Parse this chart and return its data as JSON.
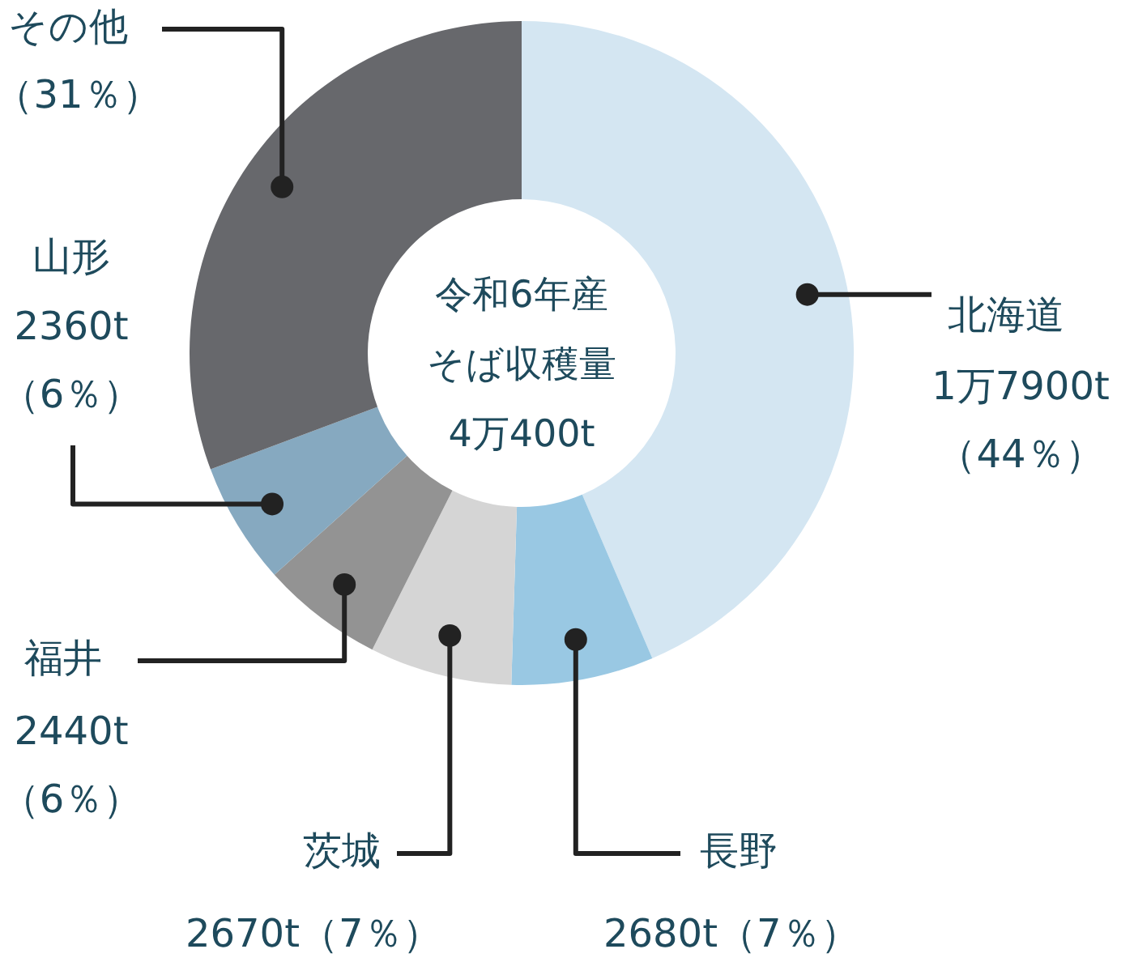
{
  "chart_data": {
    "type": "donut",
    "title": "令和6年産そば収穫量",
    "subtitle": "4万400t",
    "categories": [
      "北海道\n1万7900t",
      "長野\n2680t",
      "茨城\n2670t",
      "福井\n2440t",
      "山形\n2360t",
      "その他"
    ],
    "values": [
      44,
      7,
      7,
      6,
      6,
      31
    ],
    "colors": [
      "#d4e6f2",
      "#99c8e3",
      "#d5d5d5",
      "#939393",
      "#86a9c0",
      "#67686c"
    ],
    "value_labels": [
      "（44％）",
      "（7％）",
      "（7％）",
      "（6％）",
      "（6％）",
      "（31％）"
    ]
  }
}
